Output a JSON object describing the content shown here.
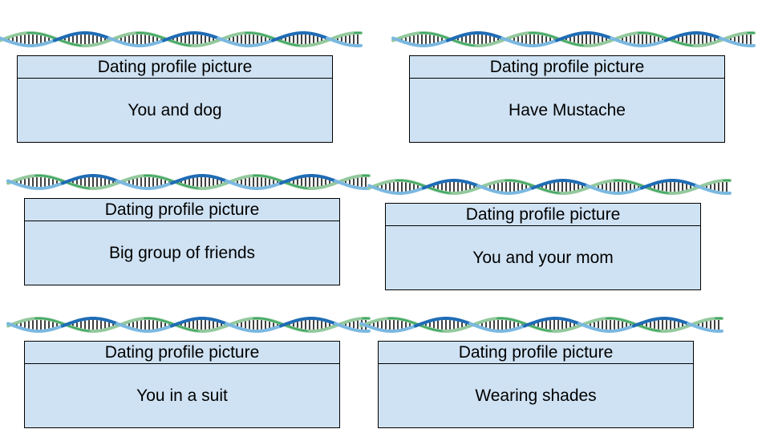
{
  "colors": {
    "card_fill": "#cfe2f3",
    "card_border": "#000000",
    "strand_light_blue": "#7ab8e0",
    "strand_green": "#93c99d",
    "strand_dark_blue": "#1f6cb5",
    "strand_dark_green": "#1a9a48",
    "rung": "#111111"
  },
  "decoration": {
    "icon": "dna-helix-icon",
    "count": 6
  },
  "cards": [
    {
      "header": "Dating profile picture",
      "body": "You and dog"
    },
    {
      "header": "Dating profile picture",
      "body": "Have Mustache"
    },
    {
      "header": "Dating profile picture",
      "body": "Big group of friends"
    },
    {
      "header": "Dating profile picture",
      "body": "You and your mom"
    },
    {
      "header": "Dating profile picture",
      "body": "You in a suit"
    },
    {
      "header": "Dating profile picture",
      "body": "Wearing shades"
    }
  ]
}
